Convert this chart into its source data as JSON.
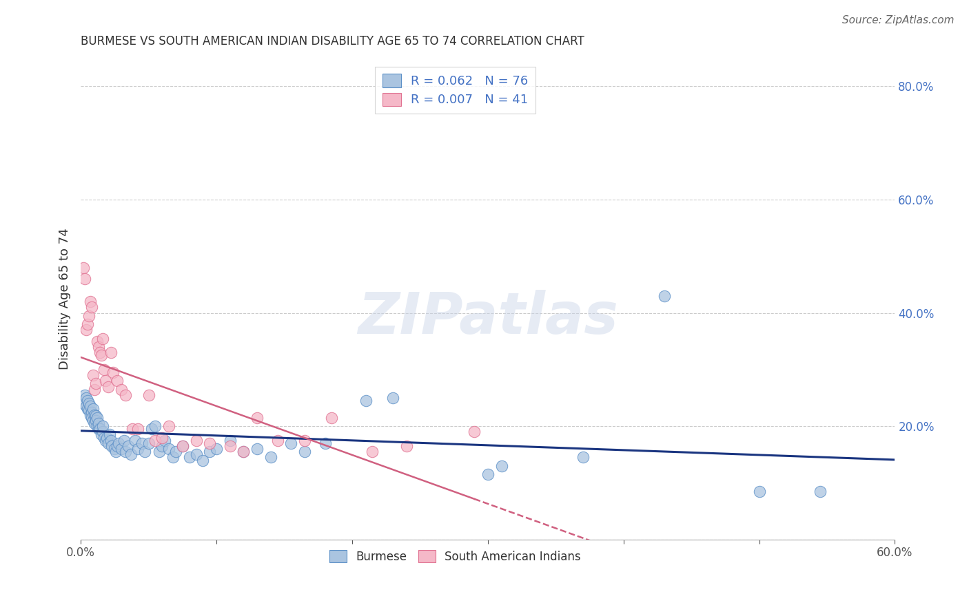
{
  "title": "BURMESE VS SOUTH AMERICAN INDIAN DISABILITY AGE 65 TO 74 CORRELATION CHART",
  "source": "Source: ZipAtlas.com",
  "ylabel": "Disability Age 65 to 74",
  "xlim": [
    0.0,
    0.6
  ],
  "ylim": [
    0.0,
    0.85
  ],
  "xtick_labels": [
    "0.0%",
    "",
    "",
    "",
    "",
    "",
    "60.0%"
  ],
  "ytick_labels": [
    "",
    "20.0%",
    "40.0%",
    "60.0%",
    "80.0%"
  ],
  "burmese_color": "#aac4e0",
  "burmese_edge": "#5b8fc7",
  "sai_color": "#f5b8c8",
  "sai_edge": "#e07090",
  "trend_blue": "#1a3580",
  "trend_pink": "#d06080",
  "legend_r1": "R = 0.062",
  "legend_n1": "N = 76",
  "legend_r2": "R = 0.007",
  "legend_n2": "N = 41",
  "watermark": "ZIPatlas",
  "burmese_x": [
    0.002,
    0.003,
    0.004,
    0.004,
    0.005,
    0.005,
    0.006,
    0.006,
    0.007,
    0.007,
    0.008,
    0.008,
    0.009,
    0.009,
    0.01,
    0.01,
    0.011,
    0.011,
    0.012,
    0.012,
    0.013,
    0.013,
    0.014,
    0.015,
    0.016,
    0.016,
    0.017,
    0.018,
    0.019,
    0.02,
    0.021,
    0.022,
    0.023,
    0.025,
    0.026,
    0.027,
    0.028,
    0.03,
    0.032,
    0.033,
    0.035,
    0.037,
    0.04,
    0.042,
    0.045,
    0.047,
    0.05,
    0.052,
    0.055,
    0.058,
    0.06,
    0.062,
    0.065,
    0.068,
    0.07,
    0.075,
    0.08,
    0.085,
    0.09,
    0.095,
    0.1,
    0.11,
    0.12,
    0.13,
    0.14,
    0.155,
    0.165,
    0.18,
    0.21,
    0.23,
    0.3,
    0.31,
    0.37,
    0.43,
    0.5,
    0.545
  ],
  "burmese_y": [
    0.24,
    0.255,
    0.235,
    0.25,
    0.23,
    0.245,
    0.228,
    0.24,
    0.22,
    0.235,
    0.225,
    0.215,
    0.21,
    0.23,
    0.22,
    0.205,
    0.218,
    0.21,
    0.2,
    0.215,
    0.195,
    0.205,
    0.195,
    0.185,
    0.19,
    0.2,
    0.18,
    0.175,
    0.18,
    0.17,
    0.185,
    0.175,
    0.165,
    0.16,
    0.155,
    0.165,
    0.17,
    0.16,
    0.175,
    0.155,
    0.165,
    0.15,
    0.175,
    0.16,
    0.17,
    0.155,
    0.17,
    0.195,
    0.2,
    0.155,
    0.165,
    0.175,
    0.16,
    0.145,
    0.155,
    0.165,
    0.145,
    0.15,
    0.14,
    0.155,
    0.16,
    0.175,
    0.155,
    0.16,
    0.145,
    0.17,
    0.155,
    0.17,
    0.245,
    0.25,
    0.115,
    0.13,
    0.145,
    0.43,
    0.085,
    0.085
  ],
  "sai_x": [
    0.002,
    0.003,
    0.004,
    0.005,
    0.006,
    0.007,
    0.008,
    0.009,
    0.01,
    0.011,
    0.012,
    0.013,
    0.014,
    0.015,
    0.016,
    0.017,
    0.018,
    0.02,
    0.022,
    0.024,
    0.027,
    0.03,
    0.033,
    0.038,
    0.042,
    0.05,
    0.055,
    0.06,
    0.065,
    0.075,
    0.085,
    0.095,
    0.11,
    0.12,
    0.13,
    0.145,
    0.165,
    0.185,
    0.215,
    0.24,
    0.29
  ],
  "sai_y": [
    0.48,
    0.46,
    0.37,
    0.38,
    0.395,
    0.42,
    0.41,
    0.29,
    0.265,
    0.275,
    0.35,
    0.34,
    0.33,
    0.325,
    0.355,
    0.3,
    0.28,
    0.27,
    0.33,
    0.295,
    0.28,
    0.265,
    0.255,
    0.195,
    0.195,
    0.255,
    0.175,
    0.18,
    0.2,
    0.165,
    0.175,
    0.17,
    0.165,
    0.155,
    0.215,
    0.175,
    0.175,
    0.215,
    0.155,
    0.165,
    0.19
  ]
}
